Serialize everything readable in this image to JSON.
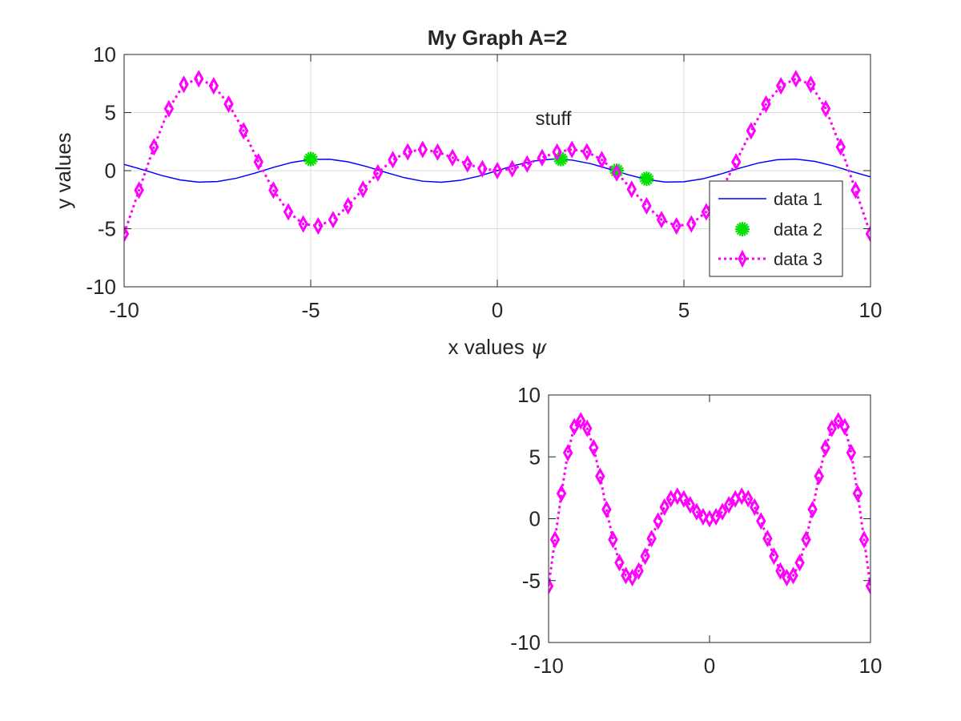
{
  "chart_data": [
    {
      "type": "line",
      "title": "My Graph A=2",
      "xlabel": "x values",
      "xlabel_symbol": "ψ",
      "ylabel": "y values",
      "xlim": [
        -10,
        10
      ],
      "ylim": [
        -10,
        10
      ],
      "xticks": [
        -10,
        -5,
        0,
        5,
        10
      ],
      "yticks": [
        -10,
        -5,
        0,
        5,
        10
      ],
      "xtick_labels": [
        "-10",
        "-5",
        "0",
        "5",
        "10"
      ],
      "ytick_labels": [
        "-10",
        "-5",
        "0",
        "5",
        "10"
      ],
      "grid": true,
      "legend": "bottom-right",
      "annotations": [
        {
          "text": "stuff",
          "x": 1.5,
          "y": 4.5
        }
      ],
      "series": [
        {
          "name": "data 1",
          "style": "line",
          "color": "#0000ff",
          "x": [
            -10,
            -9.5,
            -9,
            -8.5,
            -8,
            -7.5,
            -7,
            -6.5,
            -6,
            -5.5,
            -5,
            -4.5,
            -4,
            -3.5,
            -3,
            -2.5,
            -2,
            -1.5,
            -1,
            -0.5,
            0,
            0.5,
            1,
            1.5,
            2,
            2.5,
            3,
            3.5,
            4,
            4.5,
            5,
            5.5,
            6,
            6.5,
            7,
            7.5,
            8,
            8.5,
            9,
            9.5,
            10
          ],
          "y": [
            0.54,
            0.08,
            -0.41,
            -0.8,
            -0.99,
            -0.94,
            -0.66,
            -0.22,
            0.28,
            0.71,
            0.96,
            0.98,
            0.76,
            0.35,
            -0.14,
            -0.6,
            -0.91,
            -1.0,
            -0.84,
            -0.48,
            0.0,
            0.48,
            0.84,
            1.0,
            0.91,
            0.6,
            0.14,
            -0.35,
            -0.76,
            -0.98,
            -0.96,
            -0.71,
            -0.28,
            0.22,
            0.66,
            0.94,
            0.99,
            0.8,
            0.41,
            -0.08,
            -0.54
          ]
        },
        {
          "name": "data 2",
          "style": "markers",
          "marker": "asterisk",
          "color": "#00e000",
          "x": [
            -5,
            1.7,
            3.2,
            4
          ],
          "y": [
            1.0,
            1.0,
            0.0,
            -0.7
          ]
        },
        {
          "name": "data 3",
          "style": "dotted-line-diamond",
          "color": "#ff00ff",
          "x": [
            -10,
            -9.6,
            -9.2,
            -8.8,
            -8.4,
            -8,
            -7.6,
            -7.2,
            -6.8,
            -6.4,
            -6,
            -5.6,
            -5.2,
            -4.8,
            -4.4,
            -4,
            -3.6,
            -3.2,
            -2.8,
            -2.4,
            -2,
            -1.6,
            -1.2,
            -0.8,
            -0.4,
            0,
            0.4,
            0.8,
            1.2,
            1.6,
            2,
            2.4,
            2.8,
            3.2,
            3.6,
            4,
            4.4,
            4.8,
            5.2,
            5.6,
            6,
            6.4,
            6.8,
            7.2,
            7.6,
            8,
            8.4,
            8.8,
            9.2,
            9.6,
            10
          ],
          "y": [
            -5.44,
            -1.68,
            2.04,
            5.33,
            7.43,
            7.91,
            7.3,
            5.73,
            3.43,
            0.75,
            -1.68,
            -3.55,
            -4.59,
            -4.76,
            -4.22,
            -3.03,
            -1.6,
            -0.19,
            0.94,
            1.62,
            1.82,
            1.6,
            1.12,
            0.57,
            0.16,
            0.0,
            0.16,
            0.57,
            1.12,
            1.6,
            1.82,
            1.62,
            0.94,
            -0.19,
            -1.6,
            -3.03,
            -4.22,
            -4.76,
            -4.59,
            -3.55,
            -1.68,
            0.75,
            3.43,
            5.73,
            7.3,
            7.91,
            7.43,
            5.33,
            2.04,
            -1.68,
            -5.44
          ]
        }
      ]
    },
    {
      "type": "line",
      "title": "",
      "xlabel": "",
      "ylabel": "",
      "xlim": [
        -10,
        10
      ],
      "ylim": [
        -10,
        10
      ],
      "xticks": [
        -10,
        0,
        10
      ],
      "yticks": [
        -10,
        -5,
        0,
        5,
        10
      ],
      "xtick_labels": [
        "-10",
        "0",
        "10"
      ],
      "ytick_labels": [
        "-10",
        "-5",
        "0",
        "5",
        "10"
      ],
      "grid": false,
      "series": [
        {
          "style": "dotted-line-diamond",
          "color": "#ff00ff",
          "x": [
            -10,
            -9.6,
            -9.2,
            -8.8,
            -8.4,
            -8,
            -7.6,
            -7.2,
            -6.8,
            -6.4,
            -6,
            -5.6,
            -5.2,
            -4.8,
            -4.4,
            -4,
            -3.6,
            -3.2,
            -2.8,
            -2.4,
            -2,
            -1.6,
            -1.2,
            -0.8,
            -0.4,
            0,
            0.4,
            0.8,
            1.2,
            1.6,
            2,
            2.4,
            2.8,
            3.2,
            3.6,
            4,
            4.4,
            4.8,
            5.2,
            5.6,
            6,
            6.4,
            6.8,
            7.2,
            7.6,
            8,
            8.4,
            8.8,
            9.2,
            9.6,
            10
          ],
          "y": [
            -5.44,
            -1.68,
            2.04,
            5.33,
            7.43,
            7.91,
            7.3,
            5.73,
            3.43,
            0.75,
            -1.68,
            -3.55,
            -4.59,
            -4.76,
            -4.22,
            -3.03,
            -1.6,
            -0.19,
            0.94,
            1.62,
            1.82,
            1.6,
            1.12,
            0.57,
            0.16,
            0.0,
            0.16,
            0.57,
            1.12,
            1.6,
            1.82,
            1.62,
            0.94,
            -0.19,
            -1.6,
            -3.03,
            -4.22,
            -4.76,
            -4.59,
            -3.55,
            -1.68,
            0.75,
            3.43,
            5.73,
            7.3,
            7.91,
            7.43,
            5.33,
            2.04,
            -1.68,
            -5.44
          ]
        }
      ]
    }
  ]
}
